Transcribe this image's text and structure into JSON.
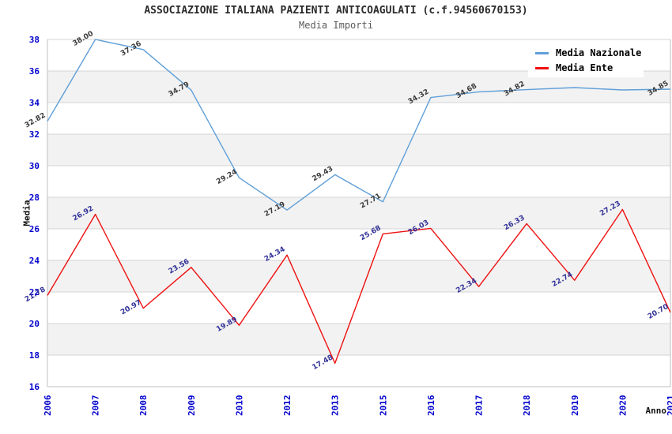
{
  "title": "ASSOCIAZIONE ITALIANA PAZIENTI ANTICOAGULATI (c.f.94560670153)",
  "subtitle": "Media Importi",
  "legend": {
    "position": "top-right",
    "items": [
      {
        "label": "Media Nazionale",
        "color": "#5F9FD8"
      },
      {
        "label": "Media Ente",
        "color": "#EE1111"
      }
    ]
  },
  "colors": {
    "tick_label": "#0000CC",
    "grid_line": "#D4D4D4",
    "band_fill": "#F2F2F2",
    "axis_spine": "#BFBFBF",
    "title_text": "#2B2B2B",
    "subtitle_text": "#5B5B5B",
    "national_series": "#5F9FD8",
    "ente_series": "#EE1111",
    "national_point_label": "#3C3C3C",
    "ente_point_label": "#333399"
  },
  "chart_data": {
    "type": "line",
    "x": [
      "2006",
      "2007",
      "2008",
      "2009",
      "2010",
      "2012",
      "2013",
      "2015",
      "2016",
      "2017",
      "2018",
      "2019",
      "2020",
      "2021"
    ],
    "xlabel": "Anno",
    "ylabel": "Media",
    "ylim": [
      16,
      38
    ],
    "ytick_step": 2,
    "grid": "horizontal gridlines with alternating gray/white bands",
    "legend_position": "top-right inside plot",
    "series": [
      {
        "name": "Media Nazionale",
        "color": "#5F9FD8",
        "label_color": "#3C3C3C",
        "values": [
          32.82,
          38.0,
          37.36,
          34.79,
          29.24,
          27.19,
          29.43,
          27.71,
          34.32,
          34.68,
          34.82,
          34.95,
          34.8,
          34.85
        ],
        "point_labels": [
          "32.82",
          "38.00",
          "37.36",
          "34.79",
          "29.24",
          "27.19",
          "29.43",
          "27.71",
          "34.32",
          "34.68",
          "34.82",
          "",
          "",
          "34.85"
        ],
        "occluded_labels": [
          "2019",
          "2020"
        ]
      },
      {
        "name": "Media Ente",
        "color": "#EE1111",
        "label_color": "#333399",
        "values": [
          21.78,
          26.92,
          20.97,
          23.56,
          19.89,
          24.34,
          17.48,
          25.68,
          26.03,
          22.34,
          26.33,
          22.74,
          27.23,
          20.7
        ],
        "point_labels": [
          "21.78",
          "26.92",
          "20.97",
          "23.56",
          "19.89",
          "24.34",
          "17.48",
          "25.68",
          "26.03",
          "22.34",
          "26.33",
          "22.74",
          "27.23",
          "20.70"
        ],
        "occluded_labels": []
      }
    ]
  }
}
